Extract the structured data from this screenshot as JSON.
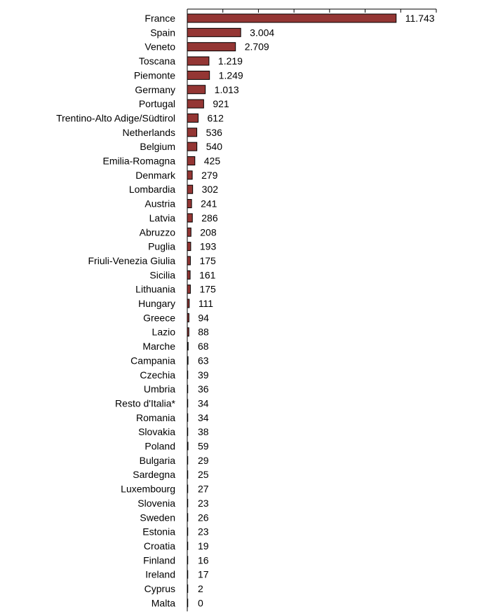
{
  "chart_data": {
    "type": "bar",
    "orientation": "horizontal",
    "bar_color": "#943634",
    "bar_stroke": "#000000",
    "categories": [
      "France",
      "Spain",
      "Veneto",
      "Toscana",
      "Piemonte",
      "Germany",
      "Portugal",
      "Trentino-Alto Adige/Südtirol",
      "Netherlands",
      "Belgium",
      "Emilia-Romagna",
      "Denmark",
      "Lombardia",
      "Austria",
      "Latvia",
      "Abruzzo",
      "Puglia",
      "Friuli-Venezia Giulia",
      "Sicilia",
      "Lithuania",
      "Hungary",
      "Greece",
      "Lazio",
      "Marche",
      "Campania",
      "Czechia",
      "Umbria",
      "Resto d'Italia*",
      "Romania",
      "Slovakia",
      "Poland",
      "Bulgaria",
      "Sardegna",
      "Luxembourg",
      "Slovenia",
      "Sweden",
      "Estonia",
      "Croatia",
      "Finland",
      "Ireland",
      "Cyprus",
      "Malta"
    ],
    "values": [
      11743,
      3004,
      2709,
      1219,
      1249,
      1013,
      921,
      612,
      536,
      540,
      425,
      279,
      302,
      241,
      286,
      208,
      193,
      175,
      161,
      175,
      111,
      94,
      88,
      68,
      63,
      39,
      36,
      34,
      34,
      38,
      59,
      29,
      25,
      27,
      23,
      26,
      23,
      19,
      16,
      17,
      2,
      0
    ],
    "value_labels": [
      "11.743",
      "3.004",
      "2.709",
      "1.219",
      "1.249",
      "1.013",
      "921",
      "612",
      "536",
      "540",
      "425",
      "279",
      "302",
      "241",
      "286",
      "208",
      "193",
      "175",
      "161",
      "175",
      "111",
      "94",
      "88",
      "68",
      "63",
      "39",
      "36",
      "34",
      "34",
      "38",
      "59",
      "29",
      "25",
      "27",
      "23",
      "26",
      "23",
      "19",
      "16",
      "17",
      "2",
      "0"
    ],
    "xlim": [
      0,
      14000
    ],
    "x_tick_values": [
      0,
      2000,
      4000,
      6000,
      8000,
      10000,
      12000,
      14000
    ],
    "x_tick_labels_visible": false,
    "grid": false,
    "title": "",
    "xlabel": "",
    "ylabel": ""
  }
}
